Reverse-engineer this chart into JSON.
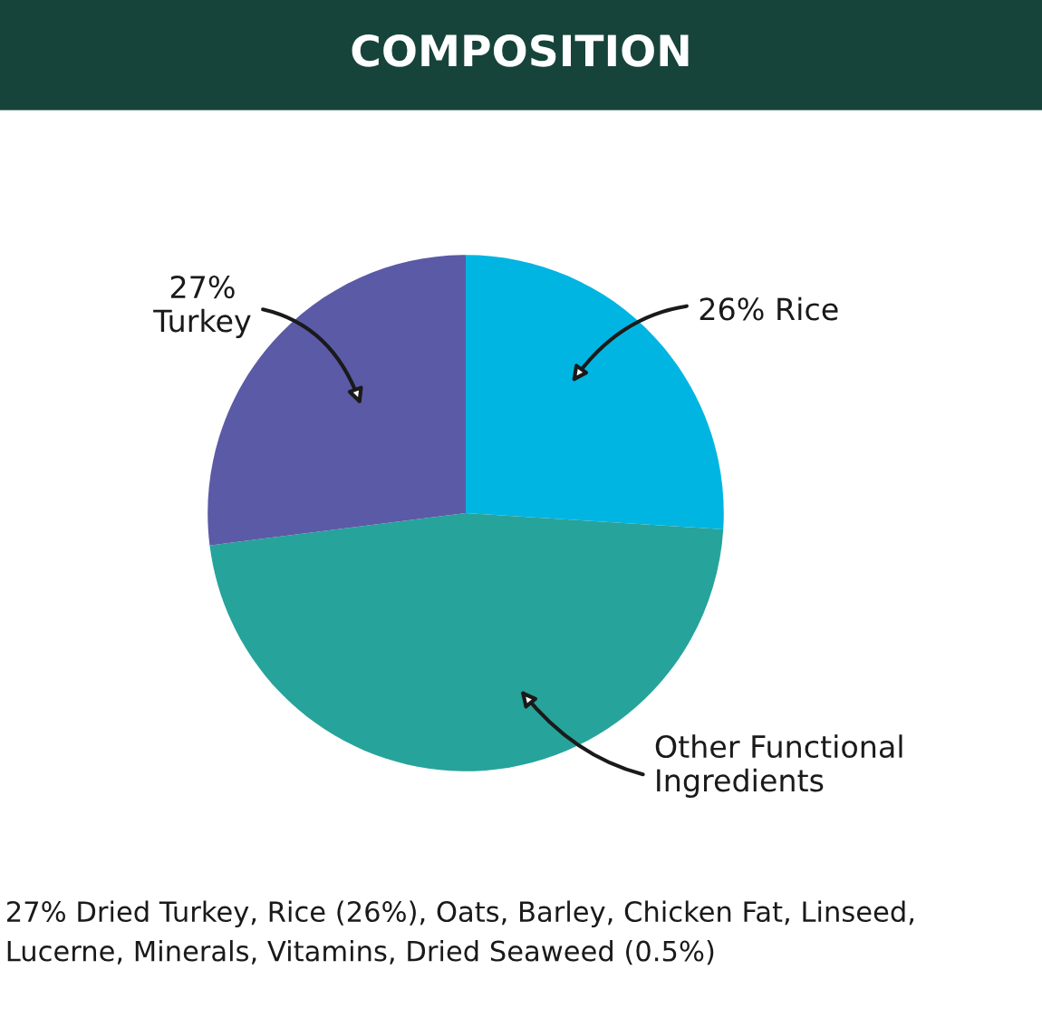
{
  "chart_data": {
    "type": "pie",
    "title": "COMPOSITION",
    "categories": [
      "Rice",
      "Other Functional Ingredients",
      "Turkey"
    ],
    "values": [
      26,
      47,
      27
    ],
    "value_labels": [
      "26%",
      null,
      "27%"
    ],
    "colors": [
      "#00b5e2",
      "#26a39b",
      "#5b5aa6"
    ],
    "annotations": [
      "27% Dried Turkey, Rice (26%), Oats, Barley, Chicken Fat, Linseed, Lucerne, Minerals, Vitamins, Dried Seaweed (0.5%)"
    ]
  }
}
